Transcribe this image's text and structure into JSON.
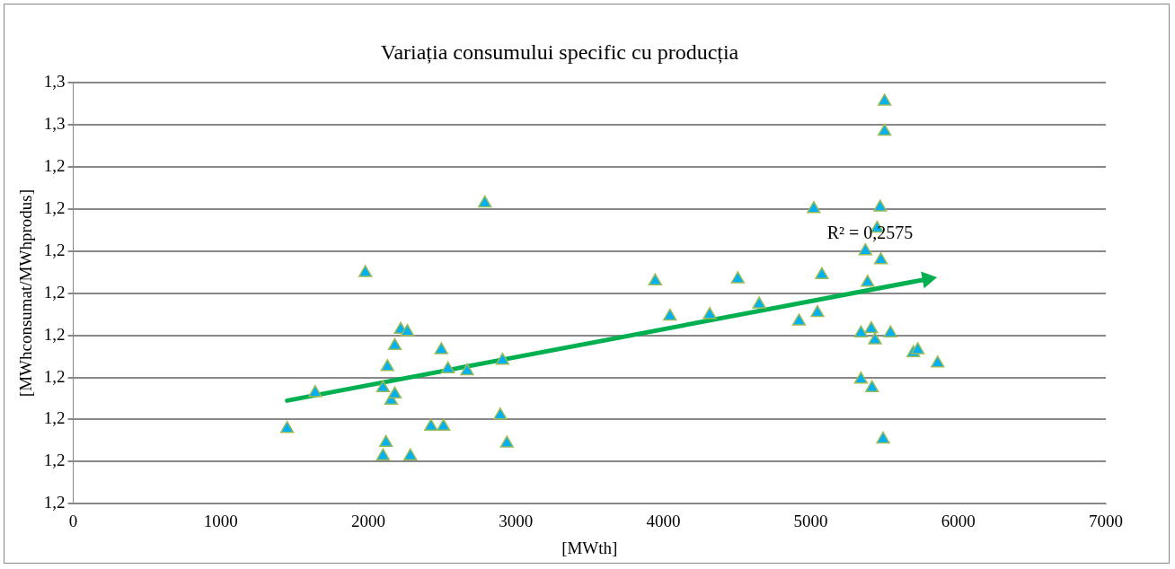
{
  "chart_data": {
    "type": "scatter",
    "title": "Variația consumului specific cu producția",
    "xlabel": "[MWth]",
    "ylabel": "[MWhconsumat/MWhprodus]",
    "xlim": [
      0,
      7000
    ],
    "xticks": [
      0,
      1000,
      2000,
      3000,
      4000,
      5000,
      6000,
      7000
    ],
    "ylim": [
      1.2,
      1.26
    ],
    "yticks": [
      {
        "value": 1.2,
        "label": "1,2"
      },
      {
        "value": 1.206,
        "label": "1,2"
      },
      {
        "value": 1.212,
        "label": "1,2"
      },
      {
        "value": 1.218,
        "label": "1,2"
      },
      {
        "value": 1.224,
        "label": "1,2"
      },
      {
        "value": 1.23,
        "label": "1,2"
      },
      {
        "value": 1.236,
        "label": "1,2"
      },
      {
        "value": 1.242,
        "label": "1,2"
      },
      {
        "value": 1.248,
        "label": "1,2"
      },
      {
        "value": 1.254,
        "label": "1,3"
      },
      {
        "value": 1.26,
        "label": "1,3"
      }
    ],
    "grid": "y",
    "annotations": [
      "R² = 0,2575"
    ],
    "series": [
      {
        "marker": "triangle",
        "color": "#00b0f0",
        "x": [
          1450,
          1640,
          1980,
          2100,
          2120,
          2100,
          2130,
          2155,
          2180,
          2220,
          2265,
          2285,
          2180,
          2425,
          2510,
          2495,
          2540,
          2670,
          2790,
          2895,
          2910,
          2940,
          3945,
          4045,
          4315,
          4505,
          4650,
          4920,
          5020,
          5045,
          5075,
          5340,
          5340,
          5370,
          5385,
          5410,
          5415,
          5435,
          5450,
          5470,
          5475,
          5490,
          5500,
          5500,
          5540,
          5695,
          5725,
          5860
        ],
        "values": [
          1.2107,
          1.2158,
          1.2329,
          1.2068,
          1.2087,
          1.2165,
          1.2195,
          1.2147,
          1.2225,
          1.2248,
          1.2245,
          1.2068,
          1.2156,
          1.211,
          1.211,
          1.2219,
          1.2192,
          1.2189,
          1.2428,
          1.2126,
          1.2204,
          1.2086,
          1.2317,
          1.2267,
          1.2269,
          1.232,
          1.2284,
          1.226,
          1.242,
          1.2272,
          1.2326,
          1.2243,
          1.2177,
          1.236,
          1.2315,
          1.2249,
          1.2165,
          1.2233,
          1.2392,
          1.2422,
          1.2347,
          1.2092,
          1.2573,
          1.253,
          1.2243,
          1.2215,
          1.2219,
          1.22
        ]
      },
      {
        "type": "line",
        "color": "#00b050",
        "x": [
          1450,
          5790
        ],
        "values": [
          1.2147,
          1.232
        ]
      }
    ]
  }
}
